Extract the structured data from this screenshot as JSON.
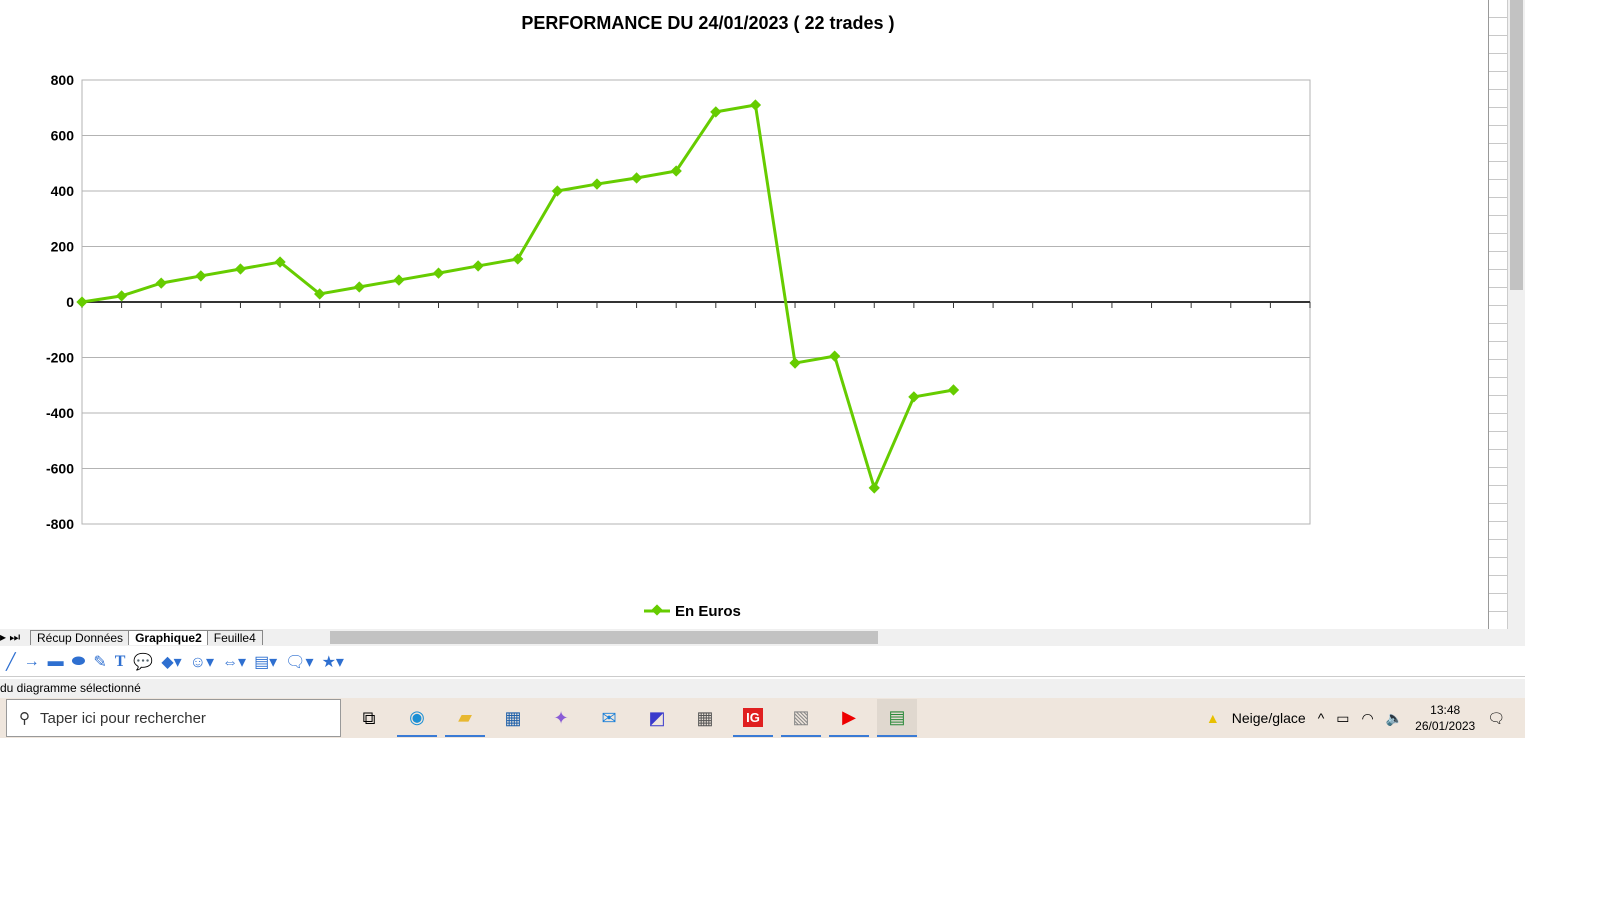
{
  "chart_data": {
    "type": "line",
    "title": "PERFORMANCE DU 24/01/2023 ( 22 trades )",
    "xlabel": "",
    "ylabel": "",
    "ylim": [
      -800,
      800
    ],
    "yticks": [
      800,
      600,
      400,
      200,
      0,
      -200,
      -400,
      -600,
      -800
    ],
    "x_range": [
      0,
      31
    ],
    "grid": true,
    "legend_position": "bottom",
    "series": [
      {
        "name": "En Euros",
        "color": "#66cc00",
        "marker": "diamond",
        "x": [
          0,
          1,
          2,
          3,
          4,
          5,
          6,
          7,
          8,
          9,
          10,
          11,
          12,
          13,
          14,
          15,
          16,
          17,
          18,
          19,
          20,
          21,
          22
        ],
        "values": [
          0,
          22,
          68,
          94,
          119,
          144,
          29,
          54,
          79,
          104,
          130,
          155,
          400,
          425,
          447,
          472,
          685,
          710,
          -220,
          -195,
          -670,
          -342,
          -317
        ]
      }
    ]
  },
  "sheet_tabs": [
    "Récup Données",
    "Graphique2",
    "Feuille4"
  ],
  "active_tab": "Graphique2",
  "status_text": "du diagramme sélectionné",
  "taskbar": {
    "search_placeholder": "Taper ici pour rechercher",
    "weather": "Neige/glace",
    "time": "13:48",
    "date": "26/01/2023",
    "apps": [
      "task-view",
      "edge",
      "file-explorer",
      "store",
      "copilot",
      "mail",
      "app-m",
      "calculator",
      "ig",
      "chart-app",
      "youtube",
      "libreoffice-calc"
    ]
  }
}
